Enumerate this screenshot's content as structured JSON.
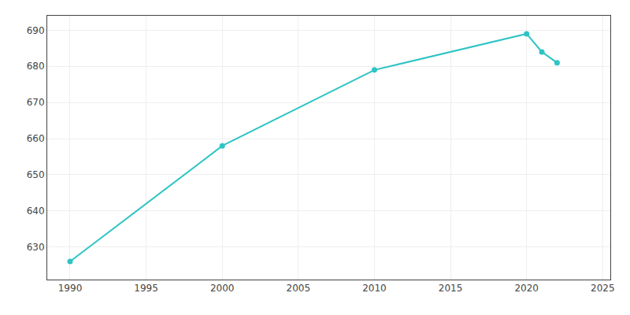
{
  "chart_data": {
    "type": "line",
    "x": [
      1990,
      2000,
      2010,
      2020,
      2021,
      2022
    ],
    "values": [
      626,
      658,
      679,
      689,
      684,
      681
    ],
    "color": "#2EC4C4",
    "marker": "circle",
    "xlim": [
      1988.5,
      2025.5
    ],
    "xticks": [
      1990,
      1995,
      2000,
      2005,
      2010,
      2015,
      2020,
      2025
    ],
    "ylim": [
      621,
      694
    ],
    "yticks": [
      630,
      640,
      650,
      660,
      670,
      680,
      690
    ],
    "grid": true
  }
}
